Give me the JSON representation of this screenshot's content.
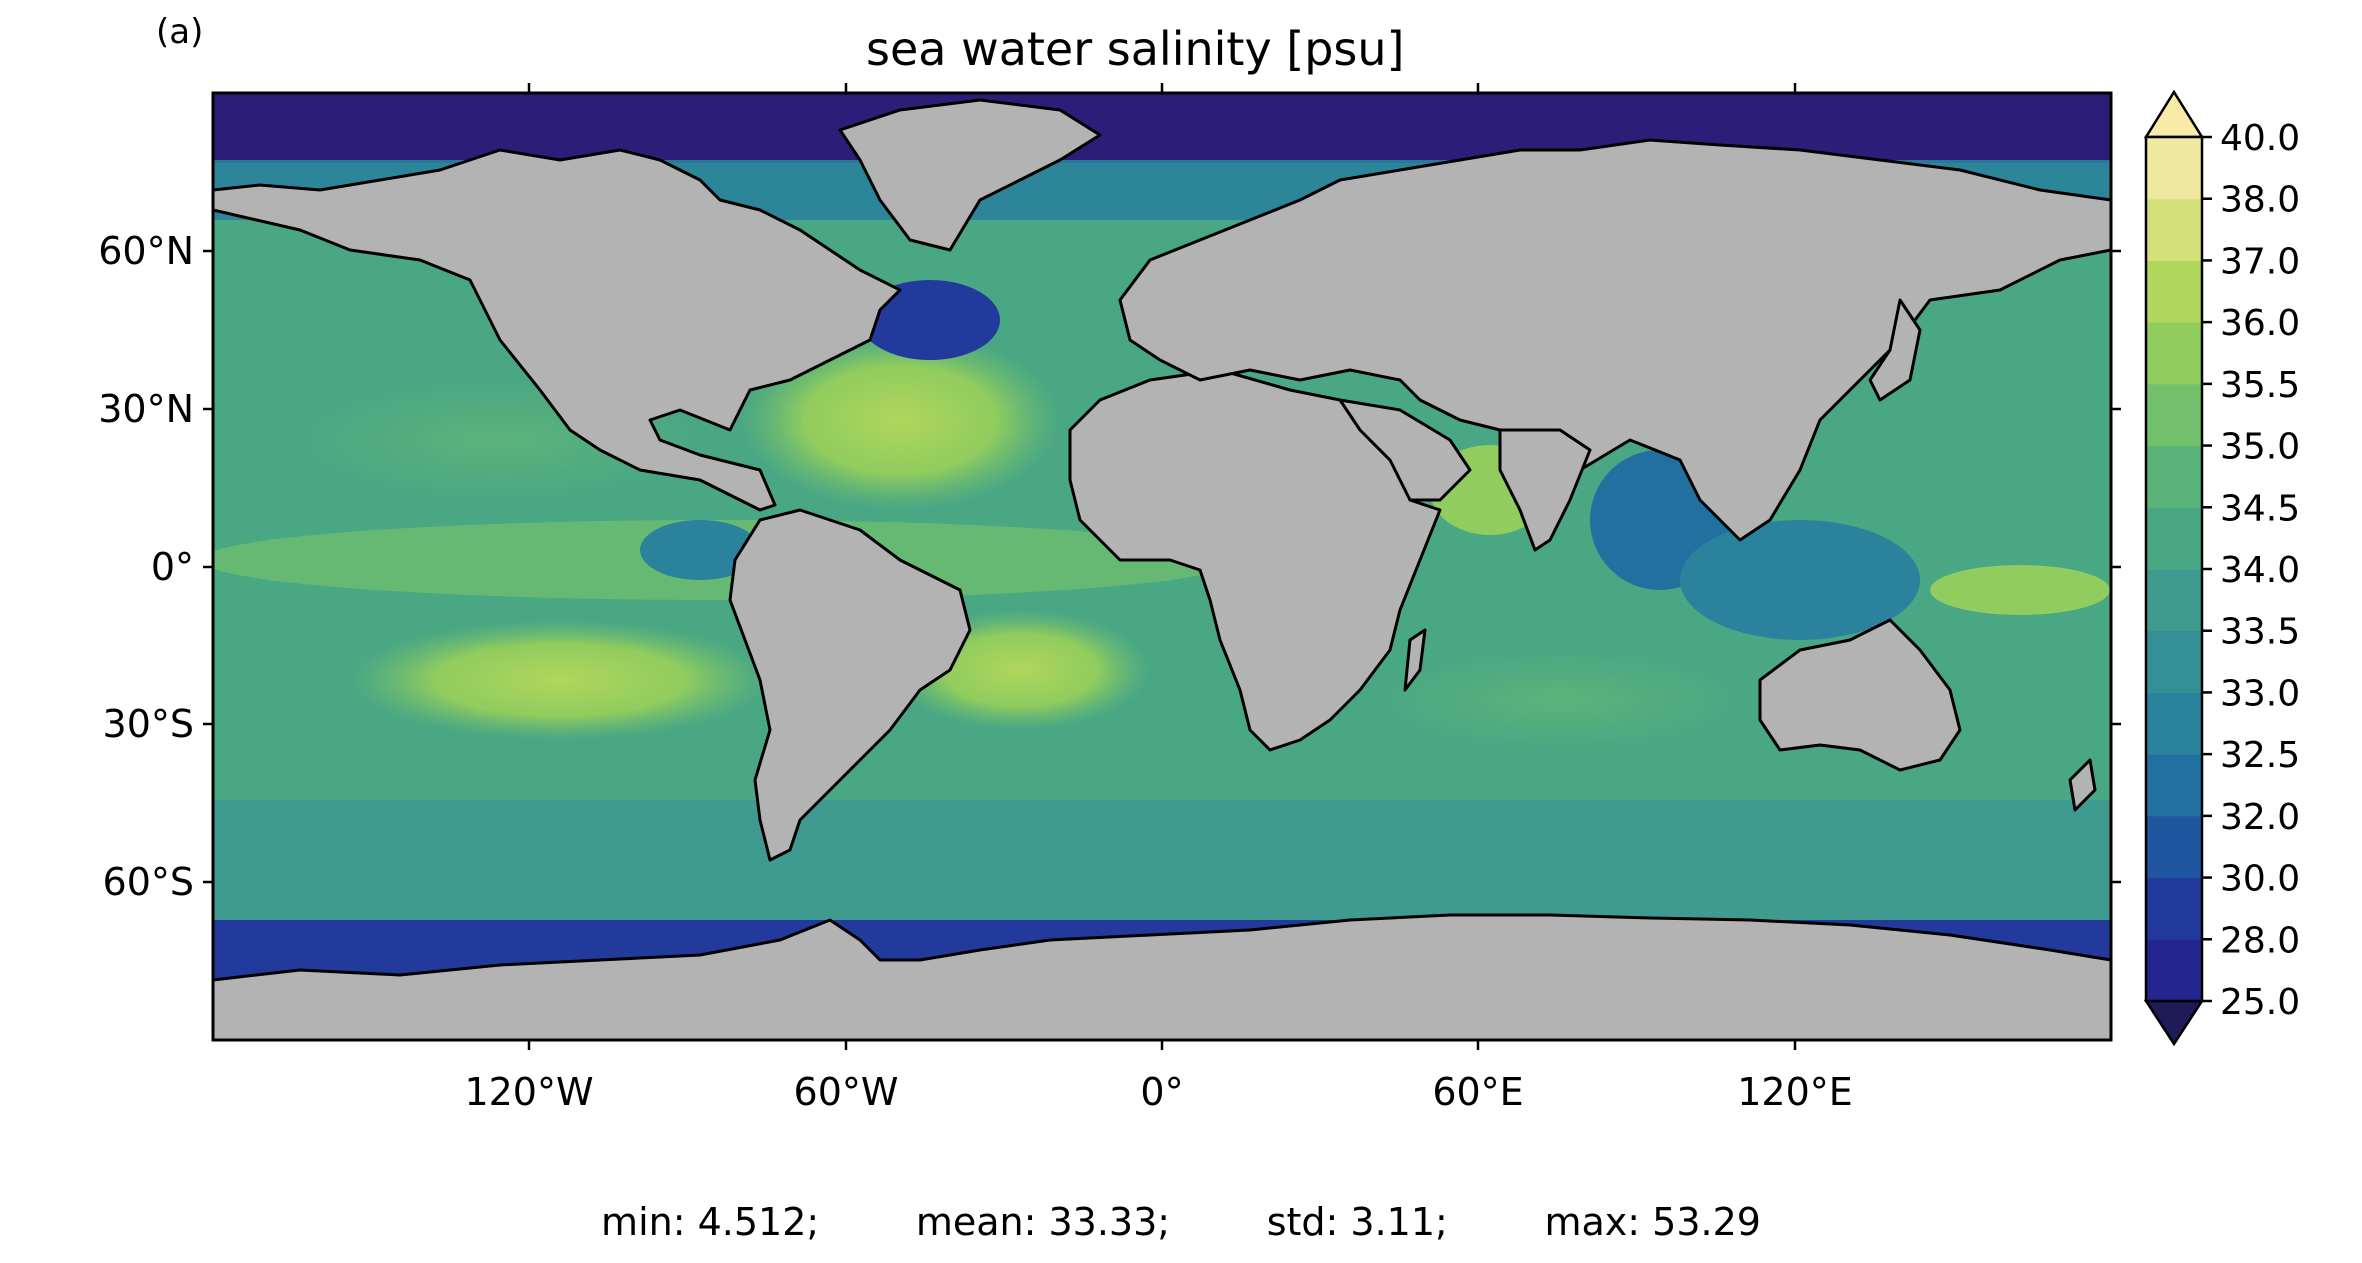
{
  "panel_label": "(a)",
  "title": "sea water salinity [psu]",
  "map": {
    "projection": "PlateCarree",
    "extent": {
      "lon": [
        -180,
        180
      ],
      "lat": [
        -90,
        90
      ]
    },
    "land_color": "#b3b3b3",
    "ocean_gradient": "salinity color-filled contours (dark blue low → light yellow high)",
    "lat_ticks": [
      "60°N",
      "30°N",
      "0°",
      "30°S",
      "60°S"
    ],
    "lon_ticks": [
      "120°W",
      "60°W",
      "0°",
      "60°E",
      "120°E"
    ]
  },
  "colorbar": {
    "levels": [
      "25.0",
      "28.0",
      "30.0",
      "32.0",
      "32.5",
      "33.0",
      "33.5",
      "34.0",
      "34.5",
      "35.0",
      "35.5",
      "36.0",
      "37.0",
      "38.0",
      "40.0"
    ],
    "colors": [
      "#2c1e78",
      "#25258f",
      "#213a9c",
      "#1f569f",
      "#22709f",
      "#2a829c",
      "#358f96",
      "#3f9a8f",
      "#4aa784",
      "#5ab479",
      "#72c06b",
      "#90cc5e",
      "#b0d65c",
      "#d4e17a",
      "#f0e8a0"
    ],
    "extend_low_color": "#1f1a58",
    "extend_high_color": "#faeaa7"
  },
  "stats": {
    "min": "min: 4.512;",
    "mean": "mean: 33.33;",
    "std": "std: 3.11;",
    "max": "max: 53.29"
  }
}
